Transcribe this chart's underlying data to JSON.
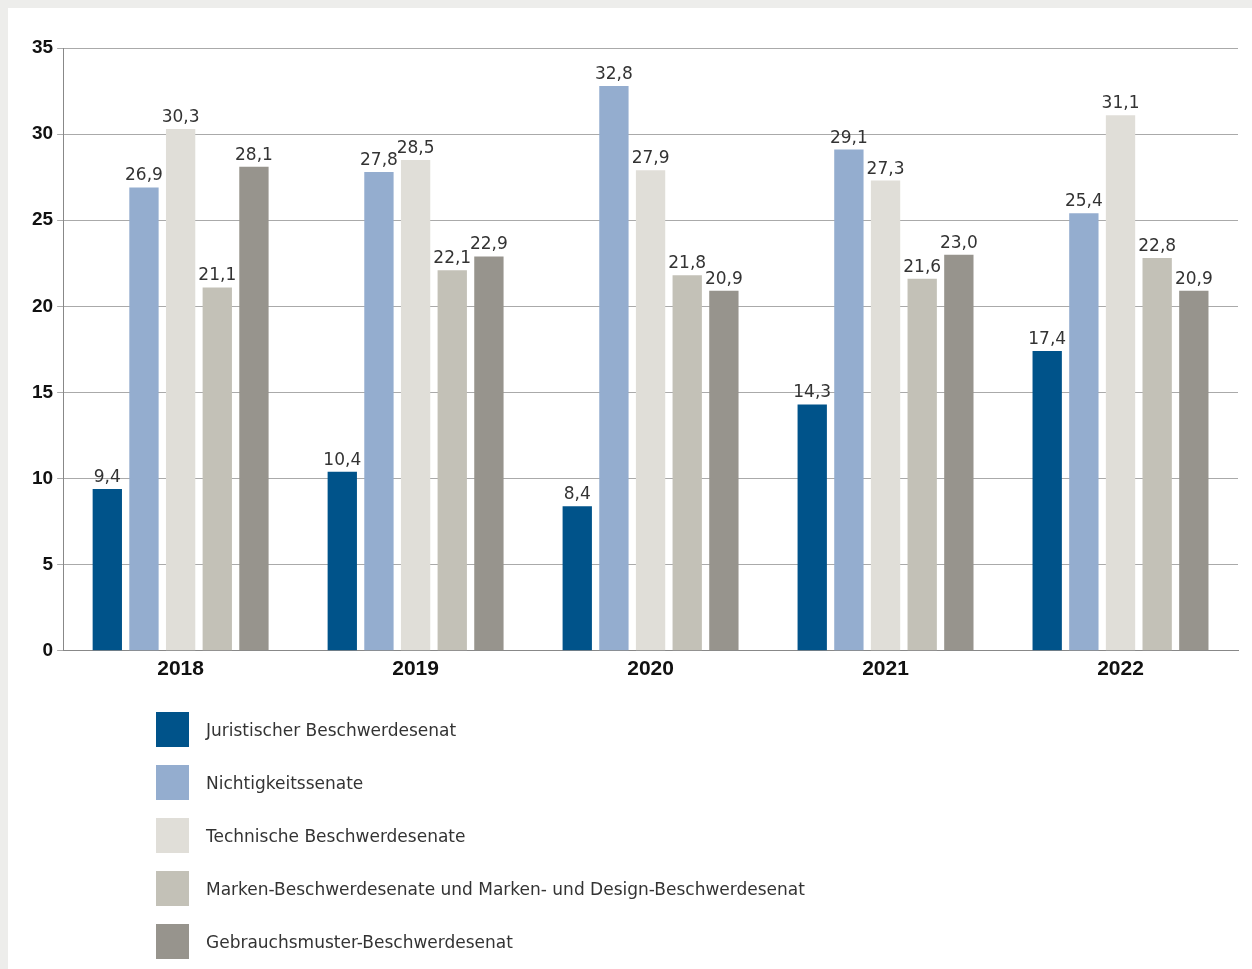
{
  "chart_data": {
    "type": "bar",
    "categories": [
      "2018",
      "2019",
      "2020",
      "2021",
      "2022"
    ],
    "series": [
      {
        "name": "Juristischer Beschwerdesenat",
        "color": "#00538a",
        "values": [
          9.4,
          10.4,
          8.4,
          14.3,
          17.4
        ],
        "value_labels": [
          "9,4",
          "10,4",
          "8,4",
          "14,3",
          "17,4"
        ]
      },
      {
        "name": "Nichtigkeitssenate",
        "color": "#94adcf",
        "values": [
          26.9,
          27.8,
          32.8,
          29.1,
          25.4
        ],
        "value_labels": [
          "26,9",
          "27,8",
          "32,8",
          "29,1",
          "25,4"
        ]
      },
      {
        "name": "Technische Beschwerdesenate",
        "color": "#e0ded8",
        "values": [
          30.3,
          28.5,
          27.9,
          27.3,
          31.1
        ],
        "value_labels": [
          "30,3",
          "28,5",
          "27,9",
          "27,3",
          "31,1"
        ]
      },
      {
        "name": "Marken-Beschwerdesenate und Marken- und Design-Beschwerdesenat",
        "color": "#c3c1b7",
        "values": [
          21.1,
          22.1,
          21.8,
          21.6,
          22.8
        ],
        "value_labels": [
          "21,1",
          "22,1",
          "21,8",
          "21,6",
          "22,8"
        ]
      },
      {
        "name": "Gebrauchsmuster-Beschwerdesenat",
        "color": "#97948d",
        "values": [
          28.1,
          22.9,
          20.9,
          23.0,
          20.9
        ],
        "value_labels": [
          "28,1",
          "22,9",
          "20,9",
          "23,0",
          "20,9"
        ]
      }
    ],
    "ylim": [
      0,
      35
    ],
    "yticks": [
      0,
      5,
      10,
      15,
      20,
      25,
      30,
      35
    ],
    "grid": "y",
    "legend": "bottom"
  }
}
